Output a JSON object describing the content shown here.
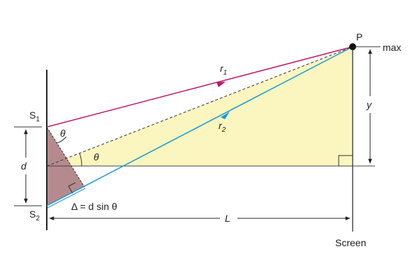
{
  "points": {
    "p": "P",
    "s1": {
      "base": "S",
      "sub": "1"
    },
    "s2": {
      "base": "S",
      "sub": "2"
    }
  },
  "rays": {
    "r1": {
      "base": "r",
      "sub": "1"
    },
    "r2": {
      "base": "r",
      "sub": "2"
    }
  },
  "angles": [
    "θ",
    "θ"
  ],
  "dimensions": {
    "d": "d",
    "y": "y",
    "L": "L"
  },
  "path_difference": "Δ = d sin θ",
  "labels": {
    "max": "max",
    "screen": "Screen"
  }
}
